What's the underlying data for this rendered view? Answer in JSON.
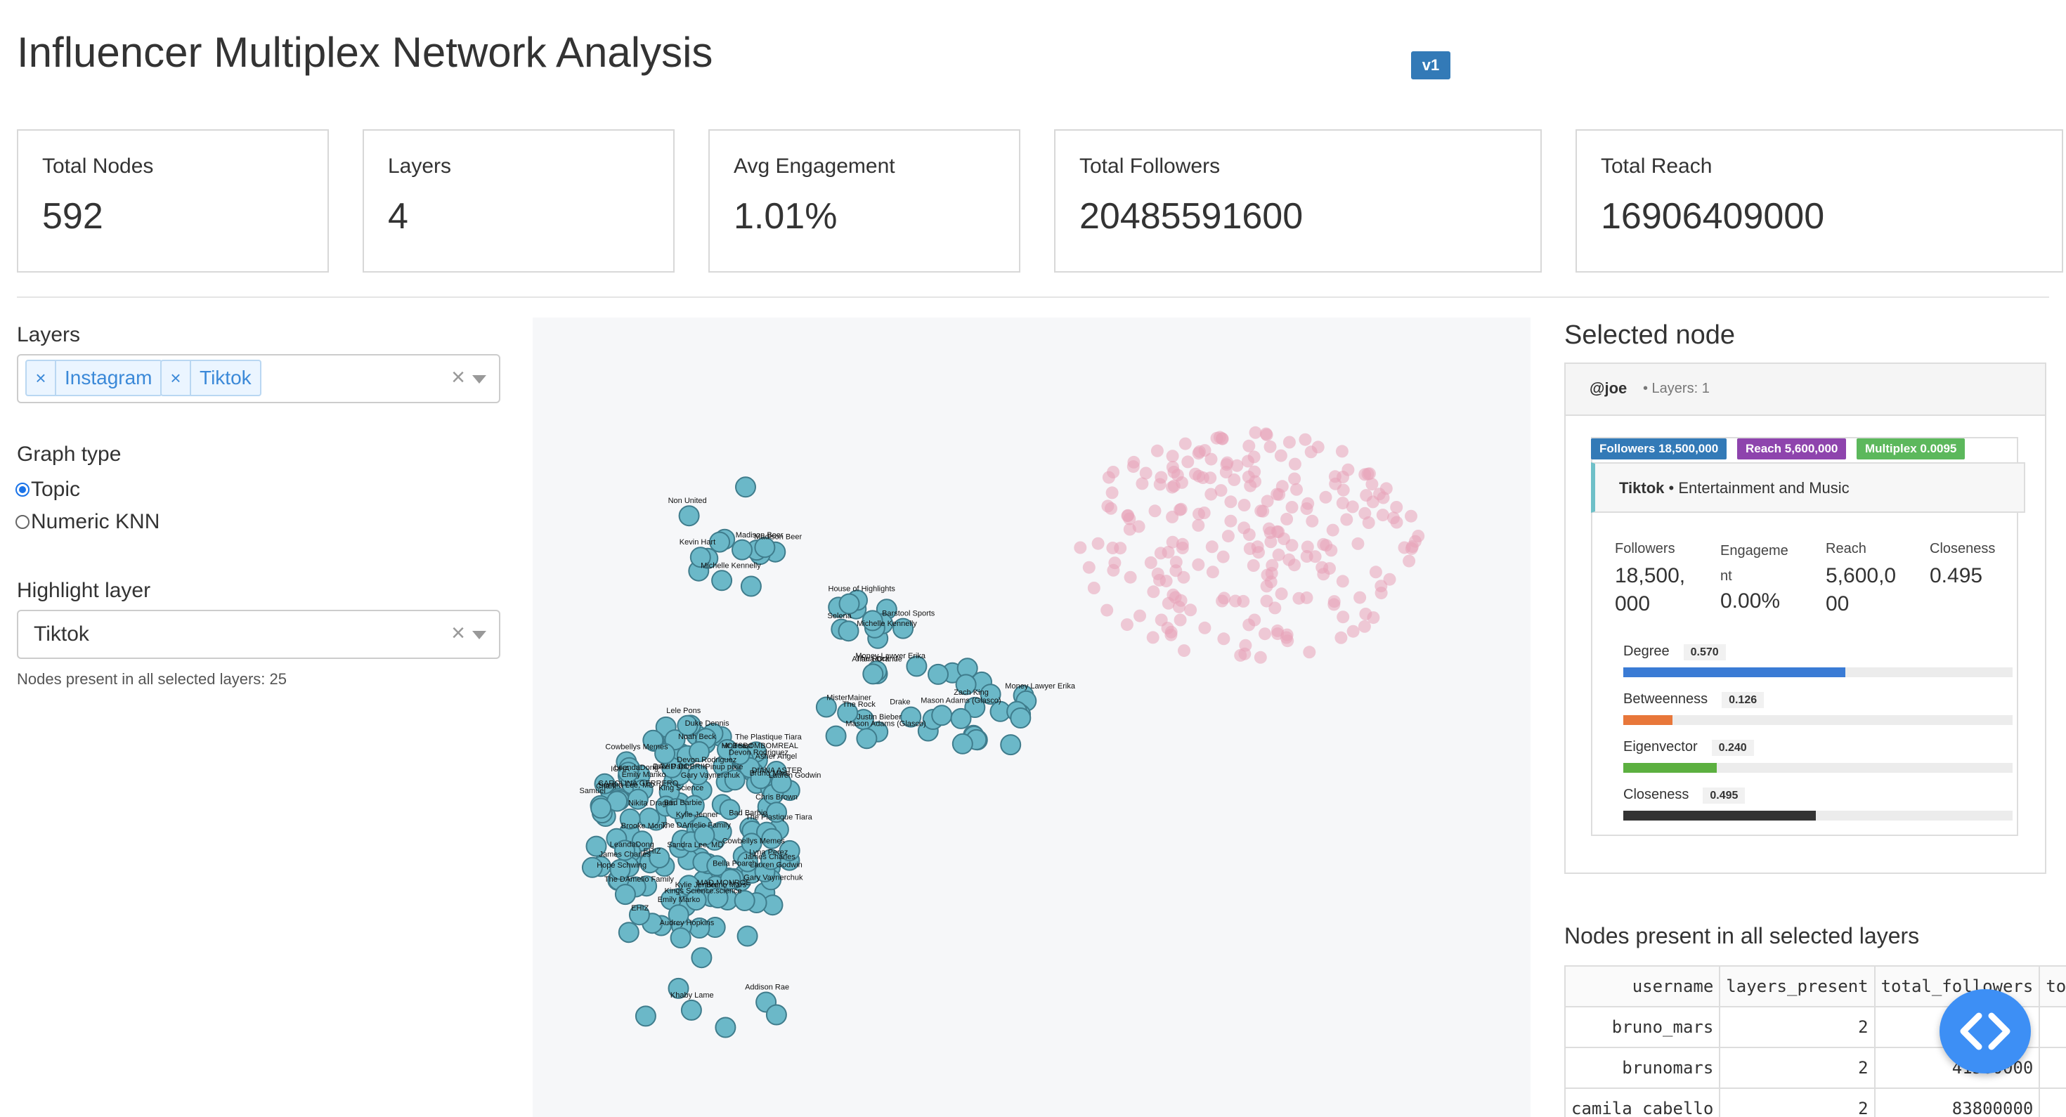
{
  "title": "Influencer Multiplex Network Analysis",
  "version": "v1",
  "stats": [
    {
      "label": "Total Nodes",
      "value": "592"
    },
    {
      "label": "Layers",
      "value": "4"
    },
    {
      "label": "Avg Engagement",
      "value": "1.01%"
    },
    {
      "label": "Total Followers",
      "value": "20485591600"
    },
    {
      "label": "Total Reach",
      "value": "16906409000"
    }
  ],
  "sidebar": {
    "layers_label": "Layers",
    "layers_selected": [
      "Instagram",
      "Tiktok"
    ],
    "remove_glyph": "×",
    "clear_glyph": "×",
    "graph_type_label": "Graph type",
    "graph_type_options": [
      "Topic",
      "Numeric KNN"
    ],
    "graph_type_selected": "Topic",
    "highlight_label": "Highlight layer",
    "highlight_value": "Tiktok",
    "nodes_note": "Nodes present in all selected layers: 25"
  },
  "graph": {
    "highlight_color": "#6bb8c8",
    "other_color": "#e8a3b8",
    "labels": [
      "DAVID DOBRIK",
      "HOTSBOMBOMREAL",
      "Cowbellys Memes",
      "Cowbellys Memes",
      "LeandaDong",
      "Brooke Monk",
      "LeandaDong",
      "CAROLINA GERRERO",
      "EHIZ",
      "EHIZ",
      "Gary Vaynerchuk",
      "Kings Science.science",
      "IOHA",
      "King Science",
      "Bad Barbie",
      "The Plastique Tiara",
      "Gary Vaynerchuk",
      "Sandra Lee, MD",
      "Bad Barbie",
      "Nikita Dragun",
      "Devon Rodriguez",
      "Sandra Lee, MD",
      "Lyna Perez",
      "Emily Mariko",
      "Hope Schwing",
      "Asher Angel",
      "The DAmelio Family",
      "Bella Poarch",
      "Devon Rodriguez",
      "DIANA ASTER",
      "The Plastique Tiara",
      "Kylie Jenner",
      "Emily Marko",
      "Lauren Godwin",
      "Bruno Mars",
      "James Charles",
      "Pinup pixie",
      "The DAmelio Family",
      "Lauren Godwin",
      "Bruno Mars",
      "Audrey Hopkins",
      "James Charles",
      "Kylie Jenner",
      "MAD MONROE",
      "Samuel",
      "Lele Pons",
      "Charli",
      "Duke Dennis",
      "Noah Beck",
      "Chris Brown",
      "Madison Beer",
      "Madison Beer",
      "Kevin Hart",
      "Non United",
      "Michelle Kennelly",
      "Michelle Kennelly",
      "Selena",
      "Barstool Sports",
      "House of Highlights",
      "Justin Bieber",
      "Zach King",
      "The Rock",
      "The Rock",
      "Money Lawyer Erika",
      "Money Lawyer Erika",
      "Mason Adams (Glasco)",
      "MisterMainer",
      "Mason Adams (Glasco)",
      "Ariana Grande",
      "Drake",
      "Khaby Lame",
      "Addison Rae",
      "Jake Paul",
      "Mr Beast"
    ]
  },
  "selected_node": {
    "title": "Selected node",
    "username": "@joe",
    "layers_text": "• Layers: 1",
    "badges": [
      {
        "text": "Followers 18,500,000",
        "color": "#337ab7"
      },
      {
        "text": "Reach 5,600,000",
        "color": "#8e44ad"
      },
      {
        "text": "Multiplex 0.0095",
        "color": "#5cb85c"
      }
    ],
    "platform": "Tiktok",
    "category": " • Entertainment and Music",
    "metrics": [
      {
        "label": "Followers",
        "value": "18,500,\n000"
      },
      {
        "label": "Engageme\nnt",
        "value": "0.00%"
      },
      {
        "label": "Reach",
        "value": "5,600,0\n00"
      },
      {
        "label": "Closeness",
        "value": "0.495"
      }
    ],
    "bars": [
      {
        "label": "Degree",
        "value": "0.570",
        "fraction": 0.57,
        "color": "#3a7bd5"
      },
      {
        "label": "Betweenness",
        "value": "0.126",
        "fraction": 0.126,
        "color": "#e8773a"
      },
      {
        "label": "Eigenvector",
        "value": "0.240",
        "fraction": 0.24,
        "color": "#5cb040"
      },
      {
        "label": "Closeness",
        "value": "0.495",
        "fraction": 0.495,
        "color": "#333333"
      }
    ]
  },
  "common_nodes": {
    "title": "Nodes present in all selected layers",
    "columns": [
      "username",
      "layers_present",
      "total_followers",
      "to"
    ],
    "rows": [
      [
        "bruno_mars",
        "2",
        "",
        ""
      ],
      [
        "brunomars",
        "2",
        "41500000",
        ""
      ],
      [
        "camila_cabello",
        "2",
        "83800000",
        ""
      ]
    ]
  },
  "fab_icon": "code-icon"
}
